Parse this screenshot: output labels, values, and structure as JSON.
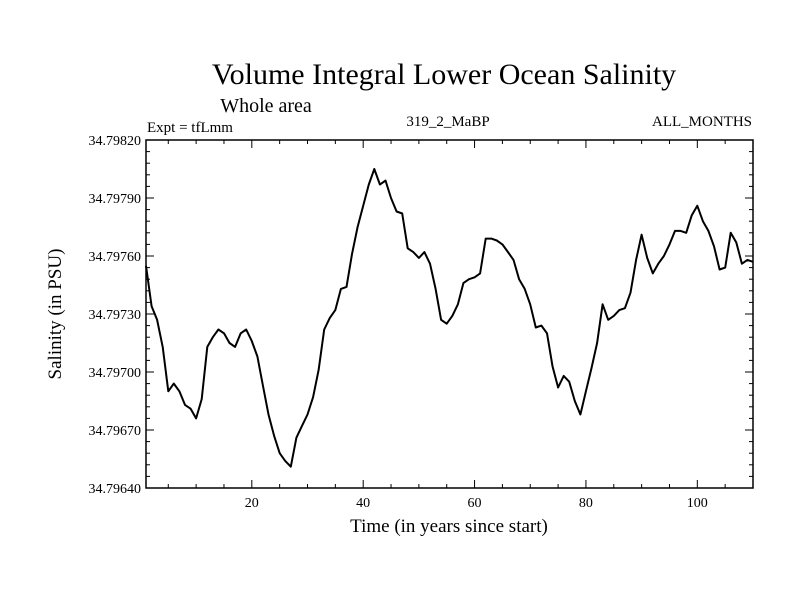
{
  "chart_data": {
    "type": "line",
    "title": "Volume Integral Lower Ocean Salinity",
    "subtitle": "Whole area",
    "experiment": "Expt = tfLmm",
    "run_label": "319_2_MaBP",
    "period": "ALL_MONTHS",
    "xlabel": "Time (in years since start)",
    "ylabel": "Salinity (in PSU)",
    "xlim": [
      1,
      110
    ],
    "ylim": [
      34.7964,
      34.7982
    ],
    "xticks": [
      20,
      40,
      60,
      80,
      100
    ],
    "xtick_labels": [
      "20",
      "40",
      "60",
      "80",
      "100"
    ],
    "yticks": [
      34.7964,
      34.7967,
      34.797,
      34.7973,
      34.7976,
      34.7979,
      34.7982
    ],
    "ytick_labels": [
      "34.79640",
      "34.79670",
      "34.79700",
      "34.79730",
      "34.79760",
      "34.79790",
      "34.79820"
    ],
    "grid": false,
    "series": [
      {
        "name": "salinity",
        "x": [
          1,
          2,
          3,
          4,
          5,
          6,
          7,
          8,
          9,
          10,
          11,
          12,
          13,
          14,
          15,
          16,
          17,
          18,
          19,
          20,
          21,
          22,
          23,
          24,
          25,
          26,
          27,
          28,
          29,
          30,
          31,
          32,
          33,
          34,
          35,
          36,
          37,
          38,
          39,
          40,
          41,
          42,
          43,
          44,
          45,
          46,
          47,
          48,
          49,
          50,
          51,
          52,
          53,
          54,
          55,
          56,
          57,
          58,
          59,
          60,
          61,
          62,
          63,
          64,
          65,
          66,
          67,
          68,
          69,
          70,
          71,
          72,
          73,
          74,
          75,
          76,
          77,
          78,
          79,
          80,
          81,
          82,
          83,
          84,
          85,
          86,
          87,
          88,
          89,
          90,
          91,
          92,
          93,
          94,
          95,
          96,
          97,
          98,
          99,
          100,
          101,
          102,
          103,
          104,
          105,
          106,
          107,
          108,
          109,
          110
        ],
        "values": [
          34.79755,
          34.79734,
          34.79727,
          34.79713,
          34.7969,
          34.79694,
          34.7969,
          34.79683,
          34.79681,
          34.79676,
          34.79686,
          34.79713,
          34.79718,
          34.79722,
          34.7972,
          34.79715,
          34.79713,
          34.7972,
          34.79722,
          34.79716,
          34.79708,
          34.79693,
          34.79678,
          34.79667,
          34.79658,
          34.79654,
          34.79651,
          34.79666,
          34.79672,
          34.79678,
          34.79687,
          34.79701,
          34.79722,
          34.79728,
          34.79732,
          34.79743,
          34.79744,
          34.79761,
          34.79775,
          34.79786,
          34.79797,
          34.79805,
          34.79797,
          34.79799,
          34.7979,
          34.79783,
          34.79782,
          34.79764,
          34.79762,
          34.79759,
          34.79762,
          34.79756,
          34.79743,
          34.79727,
          34.79725,
          34.79729,
          34.79735,
          34.79746,
          34.79748,
          34.79749,
          34.79751,
          34.79769,
          34.79769,
          34.79768,
          34.79766,
          34.79762,
          34.79758,
          34.79748,
          34.79743,
          34.79735,
          34.79723,
          34.79724,
          34.7972,
          34.79703,
          34.79692,
          34.79698,
          34.79695,
          34.79685,
          34.79678,
          34.7969,
          34.79702,
          34.79715,
          34.79735,
          34.79727,
          34.79729,
          34.79732,
          34.79733,
          34.79741,
          34.79758,
          34.79771,
          34.79759,
          34.79751,
          34.79756,
          34.7976,
          34.79766,
          34.79773,
          34.79773,
          34.79772,
          34.79781,
          34.79786,
          34.79778,
          34.79773,
          34.79765,
          34.79753,
          34.79754,
          34.79772,
          34.79767,
          34.79756,
          34.79758,
          34.79757
        ]
      }
    ]
  }
}
